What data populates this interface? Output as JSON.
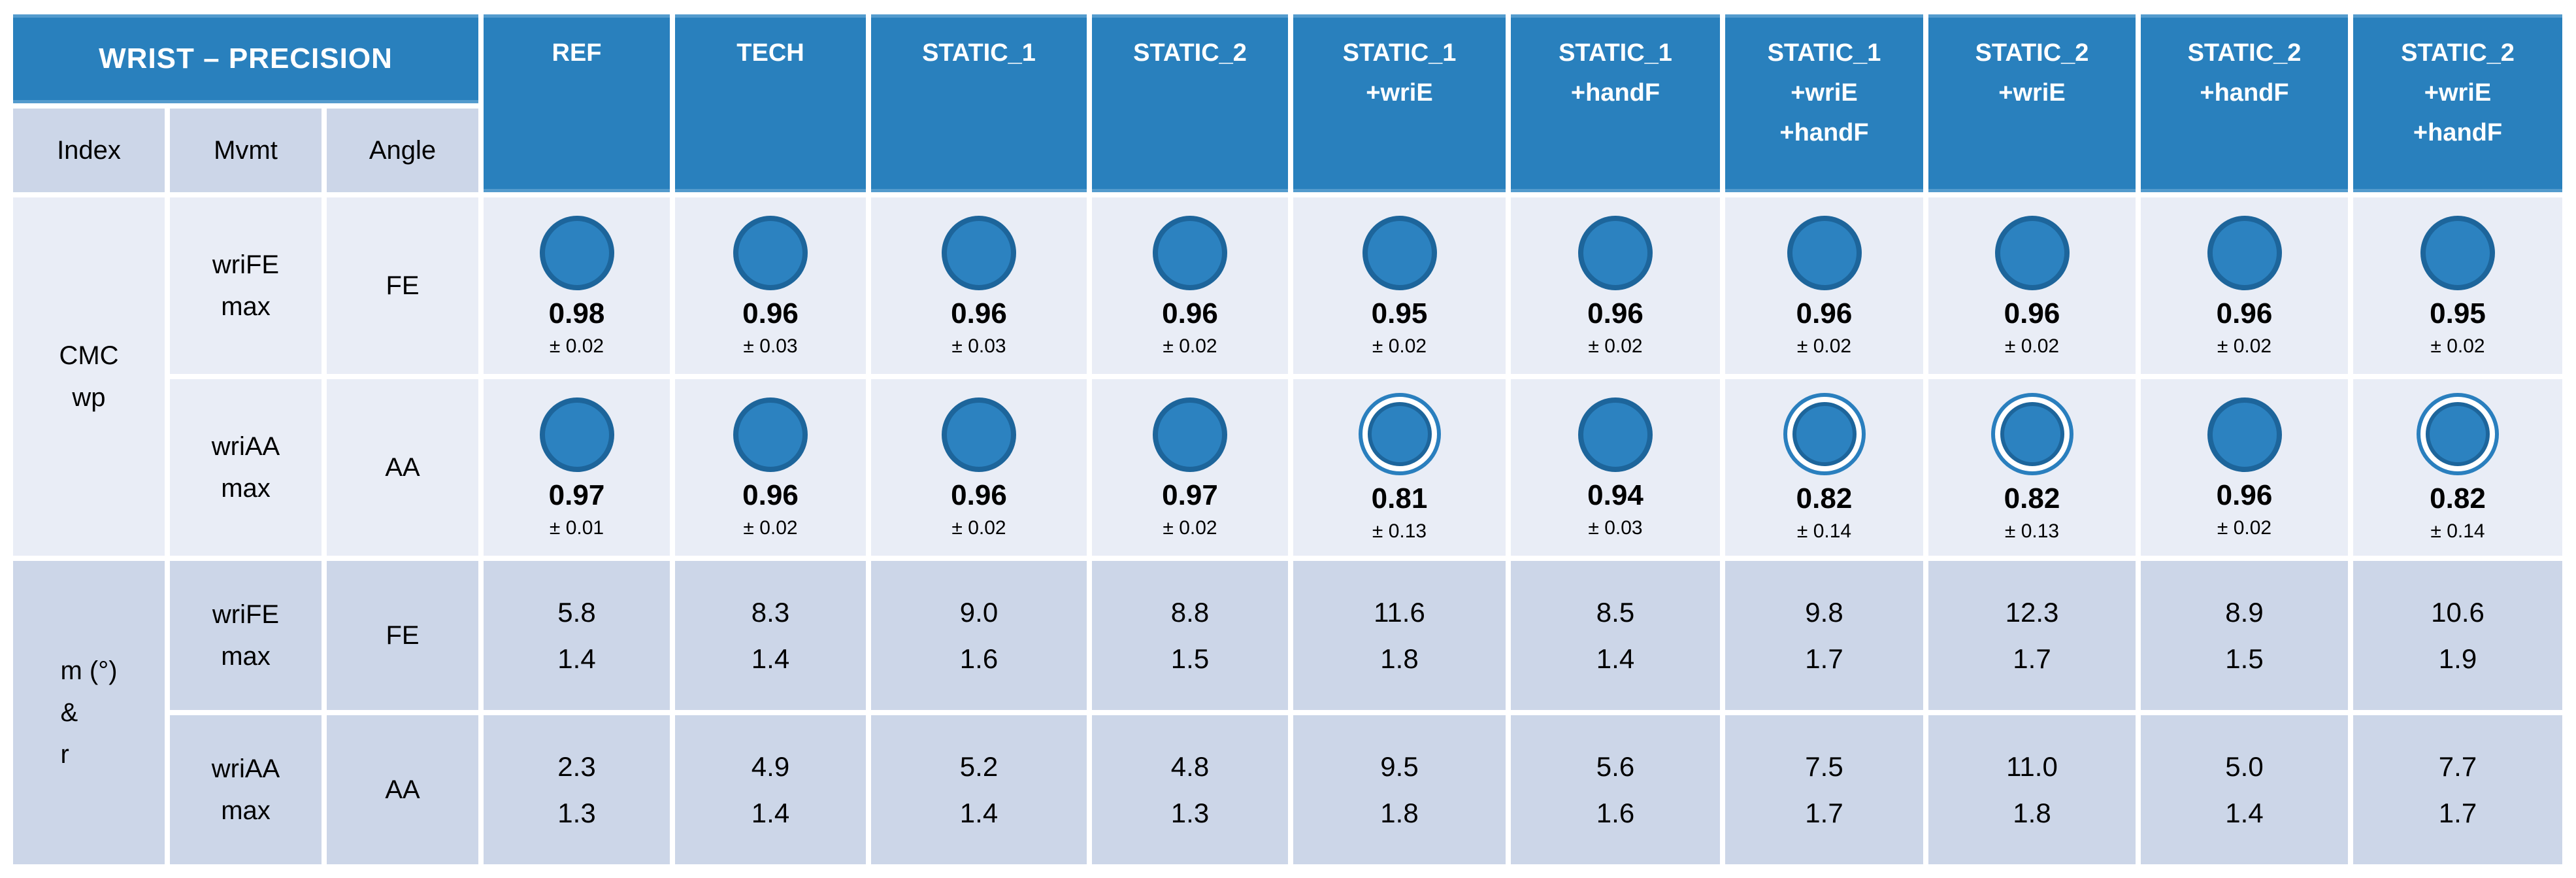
{
  "colors": {
    "header_blue": "#2980bd",
    "header_accent_border": "#549bcd",
    "correlation_section_bg": "#e9edf6",
    "numeric_section_bg": "#ccd6e8",
    "circle_fill": "#2c82c0",
    "circle_rim": "#1d659b"
  },
  "table": {
    "title": "WRIST – PRECISION",
    "index_headers": [
      "Index",
      "Mvmt",
      "Angle"
    ],
    "conditions": [
      {
        "lines": [
          "REF"
        ]
      },
      {
        "lines": [
          "TECH"
        ]
      },
      {
        "lines": [
          "STATIC_1"
        ]
      },
      {
        "lines": [
          "STATIC_2"
        ]
      },
      {
        "lines": [
          "STATIC_1",
          "+wriE"
        ]
      },
      {
        "lines": [
          "STATIC_1",
          "+handF"
        ]
      },
      {
        "lines": [
          "STATIC_1",
          "+wriE",
          "+handF"
        ]
      },
      {
        "lines": [
          "STATIC_2",
          "+wriE"
        ]
      },
      {
        "lines": [
          "STATIC_2",
          "+handF"
        ]
      },
      {
        "lines": [
          "STATIC_2",
          "+wriE",
          "+handF"
        ]
      }
    ],
    "sections": [
      {
        "index_lines": [
          "CMC",
          "wp"
        ],
        "style": "light",
        "rows": [
          {
            "mvmt_lines": [
              "wriFE",
              "max"
            ],
            "angle": "FE",
            "cells": [
              {
                "icon": "filled-circle",
                "value": "0.98",
                "sd": "± 0.02"
              },
              {
                "icon": "filled-circle",
                "value": "0.96",
                "sd": "± 0.03"
              },
              {
                "icon": "filled-circle",
                "value": "0.96",
                "sd": "± 0.03"
              },
              {
                "icon": "filled-circle",
                "value": "0.96",
                "sd": "± 0.02"
              },
              {
                "icon": "filled-circle",
                "value": "0.95",
                "sd": "± 0.02"
              },
              {
                "icon": "filled-circle",
                "value": "0.96",
                "sd": "± 0.02"
              },
              {
                "icon": "filled-circle",
                "value": "0.96",
                "sd": "± 0.02"
              },
              {
                "icon": "filled-circle",
                "value": "0.96",
                "sd": "± 0.02"
              },
              {
                "icon": "filled-circle",
                "value": "0.96",
                "sd": "± 0.02"
              },
              {
                "icon": "filled-circle",
                "value": "0.95",
                "sd": "± 0.02"
              }
            ]
          },
          {
            "mvmt_lines": [
              "wriAA",
              "max"
            ],
            "angle": "AA",
            "cells": [
              {
                "icon": "filled-circle",
                "value": "0.97",
                "sd": "± 0.01"
              },
              {
                "icon": "filled-circle",
                "value": "0.96",
                "sd": "± 0.02"
              },
              {
                "icon": "filled-circle",
                "value": "0.96",
                "sd": "± 0.02"
              },
              {
                "icon": "filled-circle",
                "value": "0.97",
                "sd": "± 0.02"
              },
              {
                "icon": "ring-circle",
                "value": "0.81",
                "sd": "± 0.13"
              },
              {
                "icon": "filled-circle",
                "value": "0.94",
                "sd": "± 0.03"
              },
              {
                "icon": "ring-circle",
                "value": "0.82",
                "sd": "± 0.14"
              },
              {
                "icon": "ring-circle",
                "value": "0.82",
                "sd": "± 0.13"
              },
              {
                "icon": "filled-circle",
                "value": "0.96",
                "sd": "± 0.02"
              },
              {
                "icon": "ring-circle",
                "value": "0.82",
                "sd": "± 0.14"
              }
            ]
          }
        ]
      },
      {
        "index_lines": [
          "m (°)",
          "&",
          "r"
        ],
        "style": "dark",
        "rows": [
          {
            "mvmt_lines": [
              "wriFE",
              "max"
            ],
            "angle": "FE",
            "cells": [
              {
                "mean": "5.8",
                "r": "1.4"
              },
              {
                "mean": "8.3",
                "r": "1.4"
              },
              {
                "mean": "9.0",
                "r": "1.6"
              },
              {
                "mean": "8.8",
                "r": "1.5"
              },
              {
                "mean": "11.6",
                "r": "1.8"
              },
              {
                "mean": "8.5",
                "r": "1.4"
              },
              {
                "mean": "9.8",
                "r": "1.7"
              },
              {
                "mean": "12.3",
                "r": "1.7"
              },
              {
                "mean": "8.9",
                "r": "1.5"
              },
              {
                "mean": "10.6",
                "r": "1.9"
              }
            ]
          },
          {
            "mvmt_lines": [
              "wriAA",
              "max"
            ],
            "angle": "AA",
            "cells": [
              {
                "mean": "2.3",
                "r": "1.3"
              },
              {
                "mean": "4.9",
                "r": "1.4"
              },
              {
                "mean": "5.2",
                "r": "1.4"
              },
              {
                "mean": "4.8",
                "r": "1.3"
              },
              {
                "mean": "9.5",
                "r": "1.8"
              },
              {
                "mean": "5.6",
                "r": "1.6"
              },
              {
                "mean": "7.5",
                "r": "1.7"
              },
              {
                "mean": "11.0",
                "r": "1.8"
              },
              {
                "mean": "5.0",
                "r": "1.4"
              },
              {
                "mean": "7.7",
                "r": "1.7"
              }
            ]
          }
        ]
      }
    ]
  }
}
